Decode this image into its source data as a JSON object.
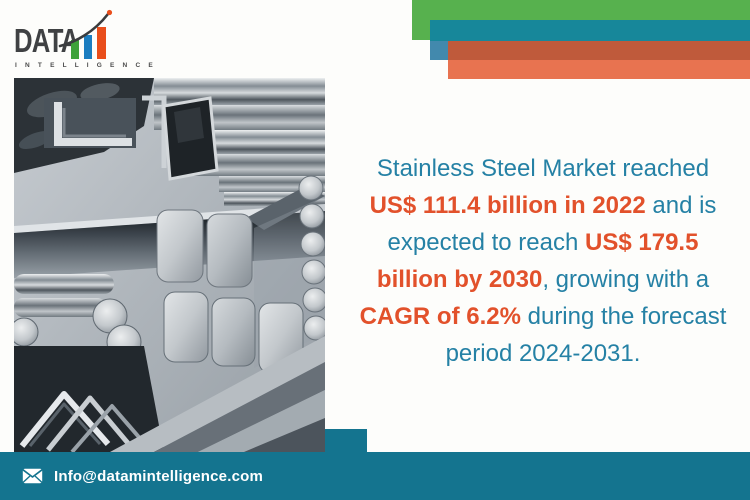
{
  "logo": {
    "brand": "DATA",
    "subtitle": "I N T E L L I G E N C E"
  },
  "icons": {
    "bar-chart-icon": "three rising bars (green, blue, orange)",
    "growth-arrow-icon": "curved swoosh with orange dot tip",
    "envelope-icon": "✉"
  },
  "headline": {
    "lines": [
      [
        {
          "t": "Stainless Steel Market reached",
          "h": false
        }
      ],
      [
        {
          "t": "US$ 111.4 billion in 2022",
          "h": true
        },
        {
          "t": " and is",
          "h": false
        }
      ],
      [
        {
          "t": "expected to reach ",
          "h": false
        },
        {
          "t": "US$ 179.5",
          "h": true
        }
      ],
      [
        {
          "t": "billion by 2030",
          "h": true
        },
        {
          "t": ", growing with a",
          "h": false
        }
      ],
      [
        {
          "t": "CAGR of 6.2%",
          "h": true
        },
        {
          "t": " during the forecast",
          "h": false
        }
      ],
      [
        {
          "t": "period 2024-2031.",
          "h": false
        }
      ]
    ]
  },
  "footer": {
    "email": "Info@datamintelligence.com"
  },
  "colors": {
    "page_bg": "#fdfdfb",
    "headline_teal": "#2581a5",
    "headline_orange": "#e2512b",
    "footer_teal": "#14748f",
    "bar_green": "#57b14e",
    "bar_teal": "#17879a",
    "bar_blue": "#4289ad",
    "bar_rust": "#bf5a3b",
    "bar_orange": "#e87350",
    "logo_green": "#3ea23a",
    "logo_blue": "#1b7dc0",
    "logo_orange": "#e94e1b",
    "logo_dark": "#3f4143"
  }
}
